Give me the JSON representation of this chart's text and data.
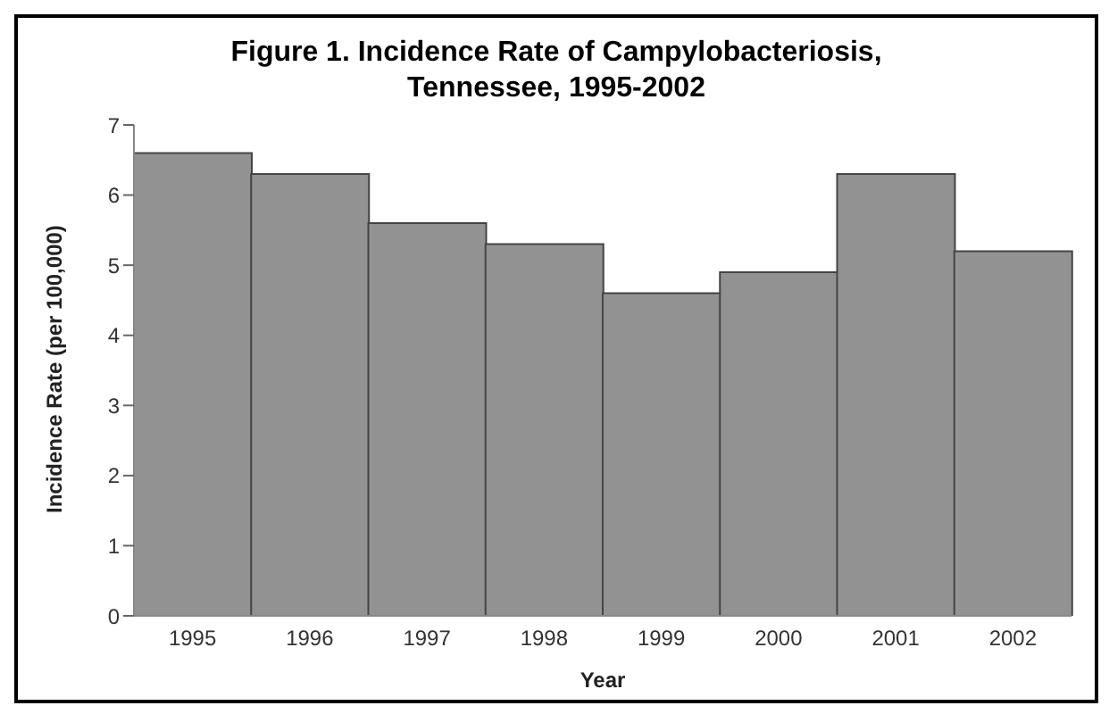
{
  "chart_data": {
    "type": "bar",
    "title": "Figure 1. Incidence Rate of Campylobacteriosis, Tennessee, 1995-2002",
    "categories": [
      "1995",
      "1996",
      "1997",
      "1998",
      "1999",
      "2000",
      "2001",
      "2002"
    ],
    "values": [
      6.6,
      6.3,
      5.6,
      5.3,
      4.6,
      4.9,
      6.3,
      5.2
    ],
    "color": "#929292",
    "xlabel": "Year",
    "ylabel": "Incidence Rate (per 100,000)",
    "ylim": [
      0,
      7
    ],
    "yticks": [
      0,
      1,
      2,
      3,
      4,
      5,
      6,
      7
    ],
    "grid": false
  }
}
